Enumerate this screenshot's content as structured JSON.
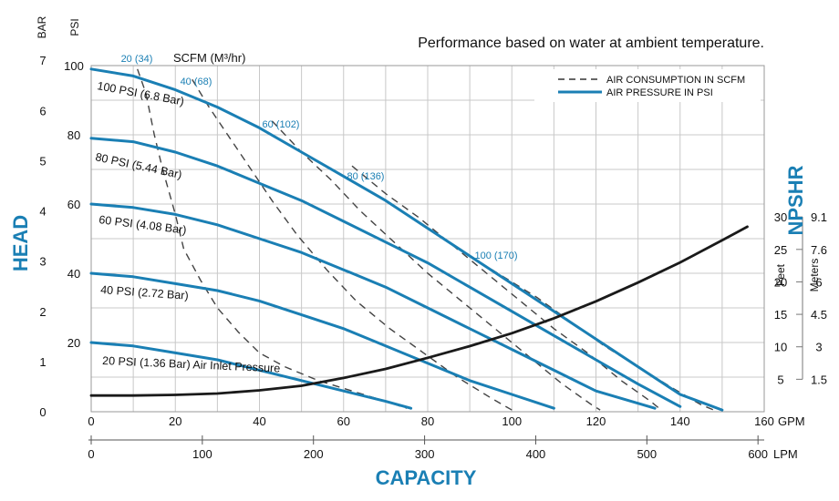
{
  "chart_data": {
    "type": "line",
    "title": "Performance based on water at ambient temperature.",
    "xlabel": "CAPACITY",
    "ylabel": "HEAD",
    "y2label": "NPSHR",
    "x_unit_top": "GPM",
    "x_unit_bottom": "LPM",
    "y_unit_left": "BAR",
    "y_unit_left2": "PSI",
    "npshr_unit_feet": "Feet",
    "npshr_unit_meters": "Meters",
    "scfm_label": "SCFM (M³/hr)",
    "xlim": [
      0,
      160
    ],
    "ylim": [
      0,
      100
    ],
    "x_ticks_gpm": [
      "0",
      "20",
      "40",
      "60",
      "80",
      "100",
      "120",
      "140",
      "160"
    ],
    "x_ticks_lpm": [
      "0",
      "100",
      "200",
      "300",
      "400",
      "500",
      "600"
    ],
    "y_ticks_psi": [
      "20",
      "40",
      "60",
      "80",
      "100"
    ],
    "y_ticks_bar": [
      "0",
      "1",
      "2",
      "3",
      "4",
      "5",
      "6",
      "7"
    ],
    "npshr_ticks_feet": [
      "5",
      "10",
      "15",
      "20",
      "25",
      "30"
    ],
    "npshr_ticks_meters": [
      "1.5",
      "3",
      "4.5",
      "6",
      "7.6",
      "9.1"
    ],
    "legend": [
      {
        "label": "AIR CONSUMPTION IN SCFM",
        "style": "dashed",
        "color": "#333333"
      },
      {
        "label": "AIR PRESSURE IN PSI",
        "style": "solid",
        "color": "#1a7fb4"
      }
    ],
    "pressure_curves": [
      {
        "label": "100 PSI (6.8 Bar)",
        "points": [
          [
            0,
            99
          ],
          [
            10,
            97
          ],
          [
            20,
            93
          ],
          [
            30,
            88
          ],
          [
            40,
            82
          ],
          [
            50,
            75
          ],
          [
            60,
            68
          ],
          [
            70,
            61
          ],
          [
            80,
            53
          ],
          [
            90,
            45
          ],
          [
            100,
            37
          ],
          [
            110,
            29
          ],
          [
            120,
            21
          ],
          [
            130,
            13
          ],
          [
            140,
            5
          ],
          [
            150,
            0.5
          ]
        ]
      },
      {
        "label": "80 PSI (5.44 Bar)",
        "points": [
          [
            0,
            79
          ],
          [
            10,
            78
          ],
          [
            20,
            75
          ],
          [
            30,
            71
          ],
          [
            40,
            66
          ],
          [
            50,
            61
          ],
          [
            60,
            55
          ],
          [
            70,
            49
          ],
          [
            80,
            43
          ],
          [
            90,
            36
          ],
          [
            100,
            29
          ],
          [
            110,
            22
          ],
          [
            120,
            15
          ],
          [
            130,
            8
          ],
          [
            140,
            1.5
          ]
        ]
      },
      {
        "label": "60 PSI (4.08 Bar)",
        "points": [
          [
            0,
            60
          ],
          [
            10,
            59
          ],
          [
            20,
            57
          ],
          [
            30,
            54
          ],
          [
            40,
            50
          ],
          [
            50,
            46
          ],
          [
            60,
            41
          ],
          [
            70,
            36
          ],
          [
            80,
            30
          ],
          [
            90,
            24
          ],
          [
            100,
            18
          ],
          [
            110,
            12
          ],
          [
            120,
            6
          ],
          [
            134,
            1
          ]
        ]
      },
      {
        "label": "40 PSI (2.72 Bar)",
        "points": [
          [
            0,
            40
          ],
          [
            10,
            39
          ],
          [
            20,
            37
          ],
          [
            30,
            35
          ],
          [
            40,
            32
          ],
          [
            50,
            28
          ],
          [
            60,
            24
          ],
          [
            70,
            19
          ],
          [
            80,
            14
          ],
          [
            90,
            9
          ],
          [
            100,
            5
          ],
          [
            110,
            1
          ]
        ]
      },
      {
        "label": "20 PSI (1.36 Bar) Air Inlet Pressure",
        "points": [
          [
            0,
            20
          ],
          [
            10,
            19
          ],
          [
            20,
            17
          ],
          [
            30,
            15
          ],
          [
            40,
            12
          ],
          [
            50,
            9
          ],
          [
            60,
            6
          ],
          [
            70,
            3
          ],
          [
            76,
            1
          ]
        ]
      }
    ],
    "air_consumption_curves": [
      {
        "label": "20 (34)",
        "points": [
          [
            11,
            99
          ],
          [
            13,
            92
          ],
          [
            15,
            80
          ],
          [
            17,
            70
          ],
          [
            20,
            57
          ],
          [
            22,
            47
          ],
          [
            26,
            38
          ],
          [
            30,
            30
          ],
          [
            35,
            23
          ],
          [
            40,
            17
          ],
          [
            46,
            13
          ],
          [
            54,
            9
          ],
          [
            62,
            6
          ],
          [
            70,
            3
          ],
          [
            75,
            1
          ]
        ]
      },
      {
        "label": "40 (68)",
        "points": [
          [
            24,
            96
          ],
          [
            28,
            88
          ],
          [
            33,
            79
          ],
          [
            38,
            70
          ],
          [
            43,
            61
          ],
          [
            49,
            51
          ],
          [
            56,
            41
          ],
          [
            63,
            32
          ],
          [
            71,
            24
          ],
          [
            79,
            17
          ],
          [
            87,
            10
          ],
          [
            95,
            4
          ],
          [
            100,
            0.5
          ]
        ]
      },
      {
        "label": "60 (102)",
        "points": [
          [
            43,
            84
          ],
          [
            50,
            75
          ],
          [
            57,
            67
          ],
          [
            64,
            58
          ],
          [
            72,
            49
          ],
          [
            80,
            40
          ],
          [
            88,
            32
          ],
          [
            96,
            24
          ],
          [
            104,
            16
          ],
          [
            112,
            8
          ],
          [
            119,
            2
          ],
          [
            121,
            0.5
          ]
        ]
      },
      {
        "label": "80 (136)",
        "points": [
          [
            62,
            71
          ],
          [
            70,
            63
          ],
          [
            78,
            56
          ],
          [
            86,
            48
          ],
          [
            94,
            40
          ],
          [
            102,
            32
          ],
          [
            110,
            24
          ],
          [
            118,
            17
          ],
          [
            126,
            9
          ],
          [
            133,
            3
          ],
          [
            135,
            1
          ]
        ]
      },
      {
        "label": "100 (170)",
        "points": [
          [
            90,
            45
          ],
          [
            98,
            39
          ],
          [
            106,
            33
          ],
          [
            114,
            26
          ],
          [
            122,
            19
          ],
          [
            130,
            13
          ],
          [
            138,
            7
          ],
          [
            145,
            2
          ],
          [
            148,
            0.5
          ]
        ]
      }
    ],
    "npshr_curve": {
      "label": "NPSHR",
      "points": [
        [
          0,
          2.5
        ],
        [
          10,
          2.5
        ],
        [
          20,
          2.6
        ],
        [
          30,
          2.8
        ],
        [
          40,
          3.3
        ],
        [
          50,
          4.0
        ],
        [
          60,
          5.2
        ],
        [
          70,
          6.6
        ],
        [
          80,
          8.3
        ],
        [
          90,
          10.1
        ],
        [
          100,
          12.1
        ],
        [
          110,
          14.4
        ],
        [
          120,
          17.0
        ],
        [
          130,
          19.9
        ],
        [
          140,
          23.0
        ],
        [
          150,
          26.4
        ],
        [
          156,
          28.5
        ]
      ]
    }
  }
}
